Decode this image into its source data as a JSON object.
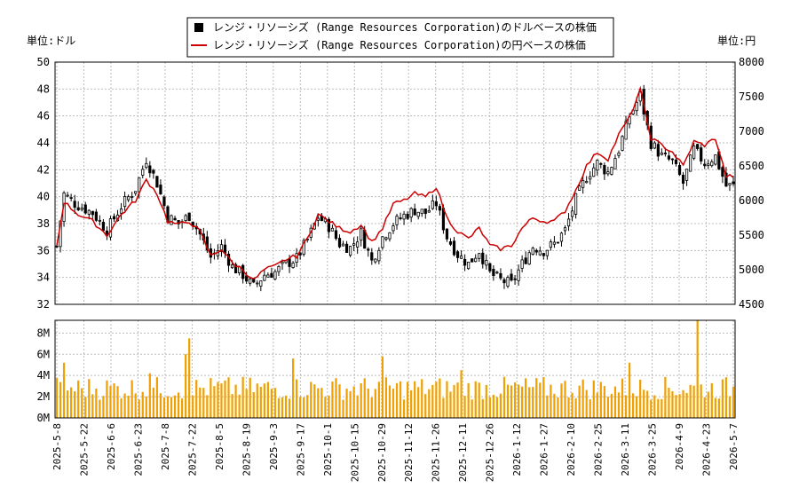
{
  "legend": {
    "usd_label": "レンジ・リソーシズ (Range Resources Corporation)のドルベースの株価",
    "jpy_label": "レンジ・リソーシズ (Range Resources Corporation)の円ベースの株価"
  },
  "axis": {
    "left_unit": "単位:ドル",
    "right_unit": "単位:円"
  },
  "colors": {
    "jpy_line": "#cc0000",
    "volume_bar": "#f0a000",
    "candle_up": "#ffffff",
    "candle_down": "#000000"
  },
  "chart_data": {
    "type": "line",
    "price_yticks_usd": [
      32,
      34,
      36,
      38,
      40,
      42,
      44,
      46,
      48,
      50
    ],
    "price_yticks_jpy": [
      4500,
      5000,
      5500,
      6000,
      6500,
      7000,
      7500,
      8000
    ],
    "volume_yticks": [
      "0M",
      "2M",
      "4M",
      "6M",
      "8M"
    ],
    "volume_ytick_values": [
      0,
      2,
      4,
      6,
      8
    ],
    "ylim_usd": [
      32,
      50
    ],
    "ylim_jpy": [
      4500,
      8000
    ],
    "ylim_volume": [
      0,
      9.2
    ],
    "x_tick_labels": [
      "2025-5-8",
      "2025-5-22",
      "2025-6-6",
      "2025-6-23",
      "2025-7-8",
      "2025-7-22",
      "2025-8-5",
      "2025-8-19",
      "2025-9-3",
      "2025-9-17",
      "2025-10-1",
      "2025-10-15",
      "2025-10-29",
      "2025-11-12",
      "2025-11-26",
      "2025-12-11",
      "2025-12-26",
      "2026-1-12",
      "2026-1-27",
      "2026-2-10",
      "2026-2-25",
      "2026-3-11",
      "2026-3-25",
      "2026-4-9",
      "2026-4-23",
      "2026-5-7"
    ],
    "series": [
      {
        "name": "レンジ・リソーシズ (Range Resources Corporation)のドルベースの株価",
        "kind": "candlestick-close",
        "key_points": [
          [
            0,
            36.3
          ],
          [
            2,
            40.2
          ],
          [
            5,
            39.5
          ],
          [
            10,
            38.8
          ],
          [
            14,
            37.5
          ],
          [
            18,
            39.3
          ],
          [
            22,
            40.6
          ],
          [
            25,
            42.8
          ],
          [
            28,
            41.0
          ],
          [
            31,
            38.5
          ],
          [
            34,
            38.0
          ],
          [
            37,
            38.6
          ],
          [
            40,
            37.2
          ],
          [
            43,
            35.5
          ],
          [
            46,
            36.3
          ],
          [
            49,
            34.8
          ],
          [
            52,
            34.2
          ],
          [
            55,
            33.3
          ],
          [
            58,
            34.2
          ],
          [
            61,
            34.4
          ],
          [
            64,
            35.0
          ],
          [
            67,
            35.4
          ],
          [
            70,
            36.8
          ],
          [
            73,
            38.5
          ],
          [
            76,
            37.8
          ],
          [
            79,
            36.5
          ],
          [
            82,
            36.2
          ],
          [
            85,
            37.3
          ],
          [
            88,
            35.2
          ],
          [
            91,
            37.0
          ],
          [
            94,
            38.0
          ],
          [
            97,
            38.6
          ],
          [
            100,
            39.0
          ],
          [
            103,
            38.8
          ],
          [
            106,
            39.5
          ],
          [
            109,
            37.0
          ],
          [
            112,
            35.7
          ],
          [
            115,
            35.0
          ],
          [
            118,
            36.0
          ],
          [
            121,
            34.3
          ],
          [
            124,
            33.8
          ],
          [
            127,
            33.5
          ],
          [
            130,
            35.0
          ],
          [
            133,
            36.3
          ],
          [
            136,
            36.0
          ],
          [
            139,
            36.5
          ],
          [
            142,
            37.5
          ],
          [
            145,
            39.8
          ],
          [
            148,
            41.5
          ],
          [
            151,
            42.5
          ],
          [
            154,
            41.8
          ],
          [
            157,
            43.5
          ],
          [
            160,
            46.0
          ],
          [
            163,
            47.5
          ],
          [
            166,
            44.0
          ],
          [
            169,
            43.0
          ],
          [
            172,
            42.6
          ],
          [
            175,
            41.0
          ],
          [
            178,
            43.5
          ],
          [
            181,
            42.5
          ],
          [
            184,
            43.0
          ],
          [
            187,
            40.8
          ]
        ]
      },
      {
        "name": "レンジ・リソーシズ (Range Resources Corporation)の円ベースの株価",
        "kind": "line",
        "key_points": [
          [
            0,
            5350
          ],
          [
            2,
            5980
          ],
          [
            6,
            5800
          ],
          [
            10,
            5700
          ],
          [
            14,
            5500
          ],
          [
            18,
            5800
          ],
          [
            22,
            6000
          ],
          [
            25,
            6300
          ],
          [
            28,
            6100
          ],
          [
            31,
            5700
          ],
          [
            34,
            5650
          ],
          [
            37,
            5700
          ],
          [
            40,
            5550
          ],
          [
            43,
            5200
          ],
          [
            46,
            5300
          ],
          [
            49,
            5100
          ],
          [
            52,
            5000
          ],
          [
            55,
            4850
          ],
          [
            58,
            5000
          ],
          [
            61,
            5050
          ],
          [
            64,
            5150
          ],
          [
            67,
            5200
          ],
          [
            70,
            5450
          ],
          [
            73,
            5800
          ],
          [
            76,
            5700
          ],
          [
            79,
            5600
          ],
          [
            82,
            5550
          ],
          [
            85,
            5650
          ],
          [
            88,
            5400
          ],
          [
            91,
            5600
          ],
          [
            94,
            5950
          ],
          [
            97,
            6000
          ],
          [
            100,
            6100
          ],
          [
            103,
            6050
          ],
          [
            106,
            6200
          ],
          [
            109,
            5750
          ],
          [
            112,
            5550
          ],
          [
            115,
            5450
          ],
          [
            118,
            5600
          ],
          [
            121,
            5350
          ],
          [
            124,
            5300
          ],
          [
            127,
            5350
          ],
          [
            130,
            5600
          ],
          [
            133,
            5750
          ],
          [
            136,
            5700
          ],
          [
            139,
            5700
          ],
          [
            142,
            5850
          ],
          [
            145,
            6150
          ],
          [
            148,
            6500
          ],
          [
            151,
            6700
          ],
          [
            154,
            6600
          ],
          [
            157,
            6950
          ],
          [
            160,
            7200
          ],
          [
            163,
            7600
          ],
          [
            166,
            6900
          ],
          [
            169,
            6800
          ],
          [
            172,
            6700
          ],
          [
            175,
            6500
          ],
          [
            178,
            6850
          ],
          [
            181,
            6800
          ],
          [
            184,
            6900
          ],
          [
            187,
            6350
          ]
        ]
      },
      {
        "name": "volume",
        "kind": "bar",
        "unit": "M",
        "spikes": [
          [
            2,
            5.2
          ],
          [
            26,
            4.2
          ],
          [
            36,
            6.0
          ],
          [
            37,
            7.5
          ],
          [
            66,
            5.6
          ],
          [
            91,
            5.8
          ],
          [
            113,
            4.5
          ],
          [
            160,
            5.2
          ],
          [
            179,
            9.2
          ]
        ]
      }
    ],
    "grid": true,
    "legend_placement": "top-center"
  }
}
